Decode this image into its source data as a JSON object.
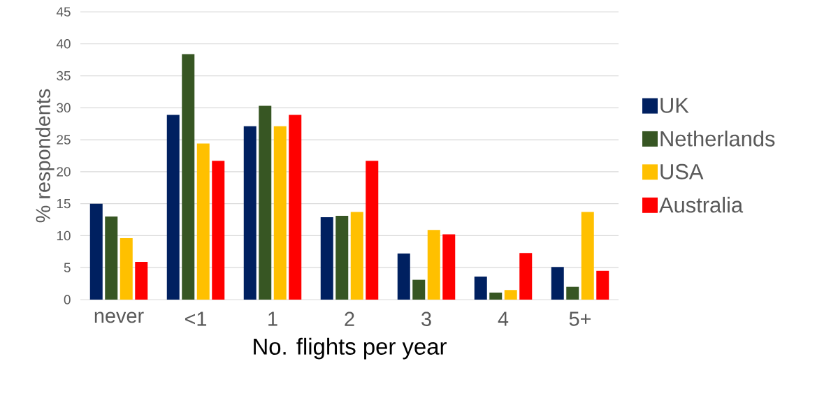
{
  "chart_data": {
    "type": "bar",
    "xlabel": "No. flights per year",
    "ylabel": "% respondents",
    "categories": [
      "never",
      "<1",
      "1",
      "2",
      "3",
      "4",
      "5+"
    ],
    "series": [
      {
        "name": "UK",
        "color": "#002060",
        "values": [
          15.0,
          28.9,
          27.1,
          12.9,
          7.2,
          3.6,
          5.1
        ]
      },
      {
        "name": "Netherlands",
        "color": "#375623",
        "values": [
          13.0,
          38.4,
          30.3,
          13.1,
          3.1,
          1.1,
          2.0
        ]
      },
      {
        "name": "USA",
        "color": "#ffc000",
        "values": [
          9.6,
          24.4,
          27.1,
          13.7,
          10.9,
          1.5,
          13.7
        ]
      },
      {
        "name": "Australia",
        "color": "#ff0000",
        "values": [
          5.9,
          21.7,
          28.9,
          21.7,
          10.2,
          7.3,
          4.5
        ]
      }
    ],
    "ylim": [
      0,
      45
    ],
    "yticks": [
      0,
      5,
      10,
      15,
      20,
      25,
      30,
      35,
      40,
      45
    ],
    "grid": "y",
    "legend": "right"
  }
}
